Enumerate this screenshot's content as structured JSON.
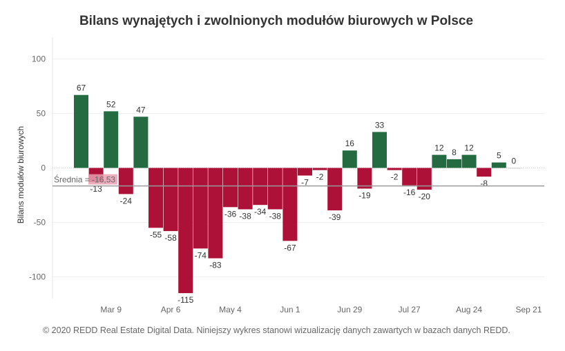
{
  "title": "Bilans wynajętych i zwolnionych modułów biurowych w Polsce",
  "footer": "© 2020 REDD Real Estate Digital Data. Niniejszy wykres stanowi wizualizację danych zawartych w bazach danych REDD.",
  "colors": {
    "positive": "#246b41",
    "negative": "#ad1138",
    "average_line": "#999999",
    "average_label_bg": "#e8a0b0",
    "zero": "#cccccc"
  },
  "chart_data": {
    "type": "bar",
    "title": "Bilans wynajętych i zwolnionych modułów biurowych w Polsce",
    "xlabel": "",
    "ylabel": "Bilans modułów biurowych",
    "ylim": [
      -120,
      120
    ],
    "yticks": [
      100,
      50,
      0,
      -50,
      -100
    ],
    "x_ticks": [
      "Mar 9",
      "Apr 6",
      "May 4",
      "Jun 1",
      "Jun 29",
      "Jul 27",
      "Aug 24",
      "Sep 21"
    ],
    "values": [
      67,
      -13,
      52,
      -24,
      47,
      -55,
      -58,
      -115,
      -74,
      -83,
      -36,
      -38,
      -34,
      -38,
      -67,
      -7,
      -2,
      -39,
      16,
      -19,
      33,
      -2,
      -16,
      -20,
      12,
      8,
      12,
      -8,
      5,
      0
    ],
    "average": {
      "label": "Średnia = -16,53",
      "value": -16.53
    },
    "grid": true
  }
}
